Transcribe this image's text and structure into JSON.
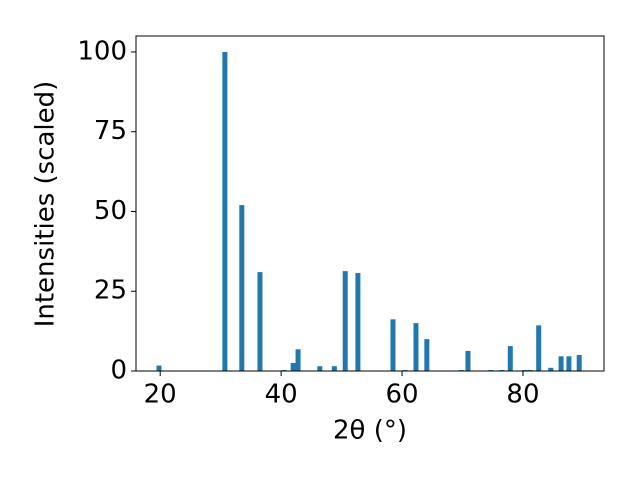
{
  "chart_data": {
    "type": "bar",
    "color": "#1f77b4",
    "x_label": "2θ (°)",
    "y_label": "Intensities (scaled)",
    "x": [
      19.8,
      30.7,
      33.5,
      36.5,
      40.5,
      42.0,
      42.8,
      46.4,
      48.8,
      50.6,
      52.7,
      58.5,
      60.5,
      62.3,
      64.1,
      69.8,
      70.9,
      74.7,
      76.5,
      77.9,
      80.3,
      81.2,
      82.6,
      84.6,
      86.3,
      87.6,
      89.3
    ],
    "values": [
      1.7,
      100,
      52,
      31,
      0.3,
      2.5,
      6.8,
      1.5,
      1.5,
      31.3,
      30.7,
      16.2,
      0.3,
      15,
      10,
      0.3,
      6.3,
      0.3,
      0.3,
      7.8,
      0.3,
      0.3,
      14.3,
      1,
      4.6,
      4.6,
      5
    ],
    "xlim": [
      16,
      93.4
    ],
    "ylim": [
      0,
      105
    ],
    "xticks": [
      20,
      40,
      60,
      80
    ],
    "yticks": [
      0,
      25,
      50,
      75,
      100
    ]
  }
}
